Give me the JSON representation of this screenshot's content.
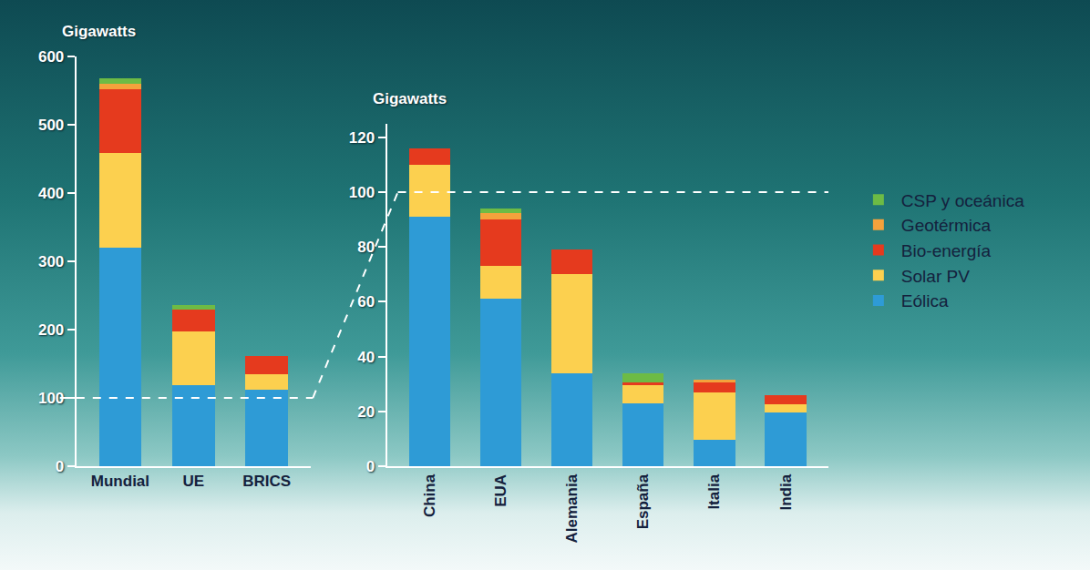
{
  "chart_data": [
    {
      "type": "bar",
      "stacked": true,
      "ylabel": "Gigawatts",
      "categories": [
        "Mundial",
        "UE",
        "BRICS"
      ],
      "series": [
        {
          "name": "Eólica",
          "color": "#2e9bd6",
          "values": [
            320,
            119,
            112
          ]
        },
        {
          "name": "Solar PV",
          "color": "#fcd04f",
          "values": [
            139,
            78,
            23
          ]
        },
        {
          "name": "Bio-energía",
          "color": "#e53a1e",
          "values": [
            93,
            32,
            26
          ]
        },
        {
          "name": "Geotérmica",
          "color": "#f4a23c",
          "values": [
            8,
            0,
            0
          ]
        },
        {
          "name": "CSP y oceánica",
          "color": "#6dbb45",
          "values": [
            8,
            7,
            0
          ]
        }
      ],
      "ylim": [
        0,
        600
      ],
      "yticks": [
        0,
        100,
        200,
        300,
        400,
        500,
        600
      ],
      "reference_line": 100
    },
    {
      "type": "bar",
      "stacked": true,
      "ylabel": "Gigawatts",
      "legend": "right",
      "categories": [
        "China",
        "EUA",
        "Alemania",
        "España",
        "Italia",
        "India"
      ],
      "series": [
        {
          "name": "Eólica",
          "color": "#2e9bd6",
          "values": [
            91,
            61,
            34,
            23,
            9.5,
            19.5
          ]
        },
        {
          "name": "Solar PV",
          "color": "#fcd04f",
          "values": [
            19,
            12,
            36,
            6.5,
            17.5,
            3
          ]
        },
        {
          "name": "Bio-energía",
          "color": "#e53a1e",
          "values": [
            6,
            17,
            9,
            1,
            3.5,
            3.5
          ]
        },
        {
          "name": "Geotérmica",
          "color": "#f4a23c",
          "values": [
            0,
            2.5,
            0,
            0,
            1,
            0
          ]
        },
        {
          "name": "CSP y oceánica",
          "color": "#6dbb45",
          "values": [
            0,
            1.5,
            0,
            3.5,
            0,
            0
          ]
        }
      ],
      "ylim": [
        0,
        125
      ],
      "yticks": [
        0,
        20,
        40,
        60,
        80,
        100,
        120
      ],
      "reference_line": 100
    }
  ]
}
